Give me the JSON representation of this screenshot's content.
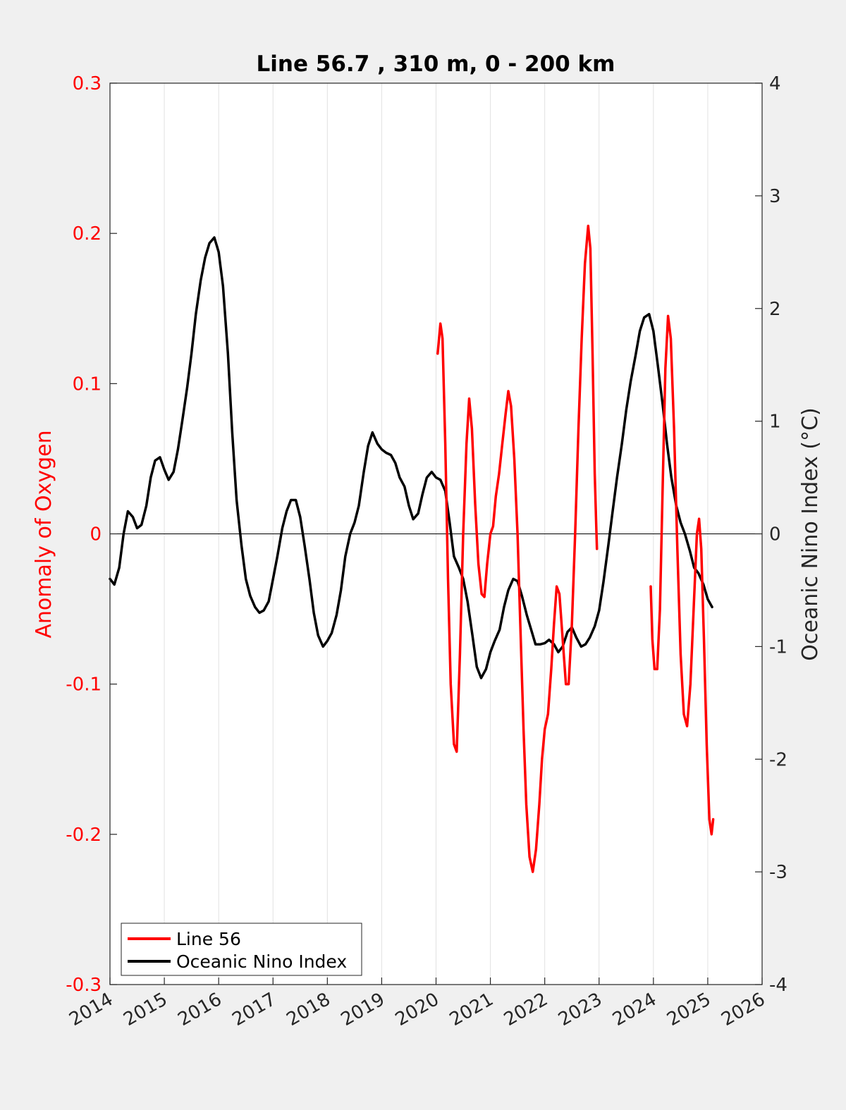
{
  "chart_data": {
    "type": "line",
    "title": "Line 56.7 , 310 m, 0 - 200 km",
    "xlabel": "",
    "xlim": [
      2014,
      2026
    ],
    "x_ticks": [
      "2014",
      "2015",
      "2016",
      "2017",
      "2018",
      "2019",
      "2020",
      "2021",
      "2022",
      "2023",
      "2024",
      "2025",
      "2026"
    ],
    "y_left": {
      "label": "Anomaly of Oxygen",
      "lim": [
        -0.3,
        0.3
      ],
      "ticks": [
        "-0.3",
        "-0.2",
        "-0.1",
        "0",
        "0.1",
        "0.2",
        "0.3"
      ],
      "color": "#ff0000"
    },
    "y_right": {
      "label": "Oceanic Nino Index (°C)",
      "lim": [
        -4,
        4
      ],
      "ticks": [
        "-4",
        "-3",
        "-2",
        "-1",
        "0",
        "1",
        "2",
        "3",
        "4"
      ],
      "color": "#262626"
    },
    "grid": "vertical",
    "legend_position": "bottom-left",
    "series": [
      {
        "name": "Line 56",
        "axis": "left",
        "color": "#ff0000",
        "segments": [
          [
            [
              2020.03,
              0.12
            ],
            [
              2020.08,
              0.14
            ],
            [
              2020.12,
              0.13
            ],
            [
              2020.17,
              0.06
            ],
            [
              2020.22,
              -0.03
            ],
            [
              2020.27,
              -0.1
            ],
            [
              2020.33,
              -0.14
            ],
            [
              2020.38,
              -0.145
            ],
            [
              2020.44,
              -0.08
            ],
            [
              2020.5,
              0.0
            ],
            [
              2020.56,
              0.06
            ],
            [
              2020.61,
              0.09
            ],
            [
              2020.66,
              0.07
            ],
            [
              2020.72,
              0.02
            ],
            [
              2020.78,
              -0.02
            ],
            [
              2020.84,
              -0.04
            ],
            [
              2020.89,
              -0.042
            ],
            [
              2020.94,
              -0.02
            ],
            [
              2021.0,
              0.0
            ],
            [
              2021.05,
              0.005
            ],
            [
              2021.1,
              0.025
            ],
            [
              2021.16,
              0.04
            ],
            [
              2021.22,
              0.06
            ],
            [
              2021.28,
              0.08
            ],
            [
              2021.33,
              0.095
            ],
            [
              2021.38,
              0.085
            ],
            [
              2021.44,
              0.05
            ],
            [
              2021.5,
              0.0
            ],
            [
              2021.55,
              -0.06
            ],
            [
              2021.61,
              -0.13
            ],
            [
              2021.66,
              -0.18
            ],
            [
              2021.72,
              -0.215
            ],
            [
              2021.78,
              -0.225
            ],
            [
              2021.84,
              -0.21
            ],
            [
              2021.9,
              -0.18
            ],
            [
              2021.95,
              -0.15
            ],
            [
              2022.0,
              -0.13
            ],
            [
              2022.06,
              -0.12
            ],
            [
              2022.12,
              -0.09
            ],
            [
              2022.17,
              -0.06
            ],
            [
              2022.22,
              -0.035
            ],
            [
              2022.27,
              -0.04
            ],
            [
              2022.33,
              -0.07
            ],
            [
              2022.39,
              -0.1
            ],
            [
              2022.44,
              -0.1
            ],
            [
              2022.5,
              -0.06
            ],
            [
              2022.56,
              0.0
            ],
            [
              2022.62,
              0.07
            ],
            [
              2022.68,
              0.13
            ],
            [
              2022.74,
              0.18
            ],
            [
              2022.8,
              0.205
            ],
            [
              2022.84,
              0.19
            ],
            [
              2022.88,
              0.12
            ],
            [
              2022.92,
              0.04
            ],
            [
              2022.96,
              -0.01
            ]
          ],
          [
            [
              2023.95,
              -0.035
            ],
            [
              2023.98,
              -0.07
            ],
            [
              2024.02,
              -0.09
            ],
            [
              2024.07,
              -0.09
            ],
            [
              2024.12,
              -0.05
            ],
            [
              2024.17,
              0.03
            ],
            [
              2024.22,
              0.11
            ],
            [
              2024.27,
              0.145
            ],
            [
              2024.32,
              0.13
            ],
            [
              2024.38,
              0.07
            ],
            [
              2024.44,
              -0.01
            ],
            [
              2024.5,
              -0.08
            ],
            [
              2024.56,
              -0.12
            ],
            [
              2024.62,
              -0.128
            ],
            [
              2024.68,
              -0.1
            ],
            [
              2024.74,
              -0.05
            ],
            [
              2024.8,
              0.0
            ],
            [
              2024.84,
              0.01
            ],
            [
              2024.88,
              -0.01
            ],
            [
              2024.93,
              -0.07
            ],
            [
              2024.98,
              -0.14
            ],
            [
              2025.03,
              -0.19
            ],
            [
              2025.07,
              -0.2
            ],
            [
              2025.1,
              -0.19
            ]
          ]
        ]
      },
      {
        "name": "Oceanic Nino Index",
        "axis": "right",
        "color": "#000000",
        "segments": [
          [
            [
              2014.0,
              -0.4
            ],
            [
              2014.08,
              -0.45
            ],
            [
              2014.17,
              -0.3
            ],
            [
              2014.25,
              0.0
            ],
            [
              2014.33,
              0.2
            ],
            [
              2014.42,
              0.15
            ],
            [
              2014.5,
              0.05
            ],
            [
              2014.58,
              0.08
            ],
            [
              2014.67,
              0.25
            ],
            [
              2014.75,
              0.5
            ],
            [
              2014.83,
              0.65
            ],
            [
              2014.92,
              0.68
            ],
            [
              2015.0,
              0.57
            ],
            [
              2015.08,
              0.48
            ],
            [
              2015.17,
              0.55
            ],
            [
              2015.25,
              0.75
            ],
            [
              2015.33,
              1.0
            ],
            [
              2015.42,
              1.3
            ],
            [
              2015.5,
              1.6
            ],
            [
              2015.58,
              1.95
            ],
            [
              2015.67,
              2.25
            ],
            [
              2015.75,
              2.45
            ],
            [
              2015.83,
              2.58
            ],
            [
              2015.92,
              2.63
            ],
            [
              2016.0,
              2.5
            ],
            [
              2016.08,
              2.2
            ],
            [
              2016.17,
              1.6
            ],
            [
              2016.25,
              0.9
            ],
            [
              2016.33,
              0.3
            ],
            [
              2016.42,
              -0.1
            ],
            [
              2016.5,
              -0.4
            ],
            [
              2016.58,
              -0.55
            ],
            [
              2016.67,
              -0.65
            ],
            [
              2016.75,
              -0.7
            ],
            [
              2016.83,
              -0.68
            ],
            [
              2016.92,
              -0.6
            ],
            [
              2017.0,
              -0.4
            ],
            [
              2017.08,
              -0.2
            ],
            [
              2017.17,
              0.05
            ],
            [
              2017.25,
              0.2
            ],
            [
              2017.33,
              0.3
            ],
            [
              2017.42,
              0.3
            ],
            [
              2017.5,
              0.15
            ],
            [
              2017.58,
              -0.1
            ],
            [
              2017.67,
              -0.4
            ],
            [
              2017.75,
              -0.7
            ],
            [
              2017.83,
              -0.9
            ],
            [
              2017.92,
              -1.0
            ],
            [
              2018.0,
              -0.95
            ],
            [
              2018.08,
              -0.88
            ],
            [
              2018.17,
              -0.72
            ],
            [
              2018.25,
              -0.5
            ],
            [
              2018.33,
              -0.2
            ],
            [
              2018.42,
              0.0
            ],
            [
              2018.5,
              0.1
            ],
            [
              2018.58,
              0.25
            ],
            [
              2018.67,
              0.55
            ],
            [
              2018.75,
              0.78
            ],
            [
              2018.83,
              0.9
            ],
            [
              2018.92,
              0.8
            ],
            [
              2019.0,
              0.75
            ],
            [
              2019.08,
              0.72
            ],
            [
              2019.17,
              0.7
            ],
            [
              2019.25,
              0.63
            ],
            [
              2019.33,
              0.5
            ],
            [
              2019.42,
              0.42
            ],
            [
              2019.5,
              0.25
            ],
            [
              2019.58,
              0.13
            ],
            [
              2019.67,
              0.18
            ],
            [
              2019.75,
              0.35
            ],
            [
              2019.83,
              0.5
            ],
            [
              2019.92,
              0.55
            ],
            [
              2020.0,
              0.5
            ],
            [
              2020.08,
              0.48
            ],
            [
              2020.17,
              0.38
            ],
            [
              2020.25,
              0.1
            ],
            [
              2020.33,
              -0.2
            ],
            [
              2020.42,
              -0.3
            ],
            [
              2020.5,
              -0.4
            ],
            [
              2020.58,
              -0.6
            ],
            [
              2020.67,
              -0.9
            ],
            [
              2020.75,
              -1.18
            ],
            [
              2020.83,
              -1.28
            ],
            [
              2020.92,
              -1.2
            ],
            [
              2021.0,
              -1.05
            ],
            [
              2021.08,
              -0.95
            ],
            [
              2021.17,
              -0.85
            ],
            [
              2021.25,
              -0.65
            ],
            [
              2021.33,
              -0.5
            ],
            [
              2021.42,
              -0.4
            ],
            [
              2021.5,
              -0.42
            ],
            [
              2021.58,
              -0.55
            ],
            [
              2021.67,
              -0.72
            ],
            [
              2021.75,
              -0.85
            ],
            [
              2021.83,
              -0.98
            ],
            [
              2021.92,
              -0.98
            ],
            [
              2022.0,
              -0.97
            ],
            [
              2022.08,
              -0.94
            ],
            [
              2022.17,
              -0.98
            ],
            [
              2022.25,
              -1.05
            ],
            [
              2022.33,
              -1.0
            ],
            [
              2022.42,
              -0.87
            ],
            [
              2022.5,
              -0.83
            ],
            [
              2022.58,
              -0.92
            ],
            [
              2022.67,
              -1.0
            ],
            [
              2022.75,
              -0.98
            ],
            [
              2022.83,
              -0.92
            ],
            [
              2022.92,
              -0.82
            ],
            [
              2023.0,
              -0.68
            ],
            [
              2023.08,
              -0.43
            ],
            [
              2023.17,
              -0.1
            ],
            [
              2023.25,
              0.2
            ],
            [
              2023.33,
              0.5
            ],
            [
              2023.42,
              0.8
            ],
            [
              2023.5,
              1.1
            ],
            [
              2023.58,
              1.35
            ],
            [
              2023.67,
              1.58
            ],
            [
              2023.75,
              1.8
            ],
            [
              2023.83,
              1.92
            ],
            [
              2023.92,
              1.95
            ],
            [
              2024.0,
              1.8
            ],
            [
              2024.08,
              1.5
            ],
            [
              2024.17,
              1.15
            ],
            [
              2024.25,
              0.8
            ],
            [
              2024.33,
              0.5
            ],
            [
              2024.42,
              0.25
            ],
            [
              2024.5,
              0.1
            ],
            [
              2024.58,
              0.0
            ],
            [
              2024.67,
              -0.15
            ],
            [
              2024.75,
              -0.3
            ],
            [
              2024.83,
              -0.35
            ],
            [
              2024.92,
              -0.45
            ],
            [
              2025.0,
              -0.58
            ],
            [
              2025.08,
              -0.65
            ]
          ]
        ]
      }
    ]
  }
}
